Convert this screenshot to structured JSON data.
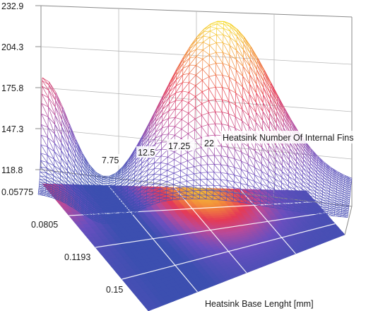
{
  "chart_data": {
    "type": "surface3d",
    "z_axis": {
      "ticks": [
        "232.9",
        "204.3",
        "175.8",
        "147.3",
        "118.8"
      ],
      "range": [
        118.8,
        232.9
      ]
    },
    "x_axis": {
      "label": "Heatsink Number Of Internal Fins",
      "ticks": [
        "7.75",
        "12.5",
        "17.25",
        "22"
      ],
      "range": [
        3,
        22
      ]
    },
    "y_axis": {
      "label": "Heatsink Base Lenght [mm]",
      "ticks": [
        "0.05775",
        "0.0805",
        "0.1193",
        "0.15"
      ],
      "range": [
        0.05775,
        0.15
      ]
    },
    "style": {
      "wireframe": true,
      "floor_projection": true,
      "colormap": [
        "#3c4fb0",
        "#6a4fbf",
        "#b84a9a",
        "#e53a55",
        "#f28a3c",
        "#f6df2e"
      ]
    }
  }
}
